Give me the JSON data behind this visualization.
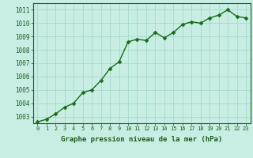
{
  "x": [
    0,
    1,
    2,
    3,
    4,
    5,
    6,
    7,
    8,
    9,
    10,
    11,
    12,
    13,
    14,
    15,
    16,
    17,
    18,
    19,
    20,
    21,
    22,
    23
  ],
  "y": [
    1002.6,
    1002.8,
    1003.2,
    1003.7,
    1004.0,
    1004.8,
    1005.0,
    1005.7,
    1006.6,
    1007.1,
    1008.6,
    1008.8,
    1008.7,
    1009.3,
    1008.9,
    1009.3,
    1009.9,
    1010.1,
    1010.0,
    1010.4,
    1010.6,
    1011.0,
    1010.5,
    1010.4
  ],
  "line_color": "#1a6b1a",
  "marker_color": "#1a6b1a",
  "bg_color": "#c8eee4",
  "grid_color": "#a8d8cc",
  "label_color": "#1a5c1a",
  "xlabel": "Graphe pression niveau de la mer (hPa)",
  "ylim_min": 1002.5,
  "ylim_max": 1011.5,
  "yticks": [
    1003,
    1004,
    1005,
    1006,
    1007,
    1008,
    1009,
    1010,
    1011
  ],
  "xtick_labels": [
    "0",
    "1",
    "2",
    "3",
    "4",
    "5",
    "6",
    "7",
    "8",
    "9",
    "10",
    "11",
    "12",
    "13",
    "14",
    "15",
    "16",
    "17",
    "18",
    "19",
    "20",
    "21",
    "22",
    "23"
  ],
  "marker_size": 2.5,
  "line_width": 1.0
}
